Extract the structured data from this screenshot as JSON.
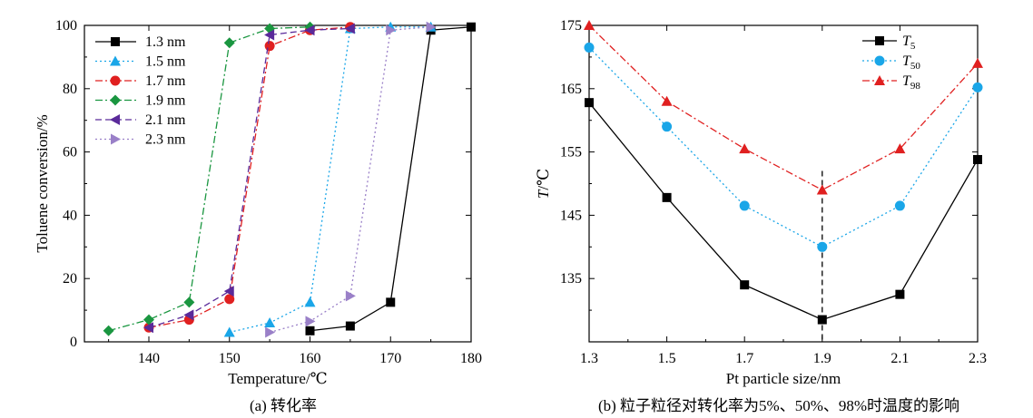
{
  "chart_data": [
    {
      "type": "line",
      "panel": "a",
      "caption": "(a) 转化率",
      "xlabel": "Temperature/℃",
      "ylabel": "Toluene conversion/%",
      "xlim": [
        132,
        180
      ],
      "ylim": [
        0,
        100
      ],
      "xticks": [
        "140",
        "150",
        "160",
        "170",
        "180"
      ],
      "yticks": [
        "0",
        "20",
        "40",
        "60",
        "80",
        "100"
      ],
      "legend_position": "top-left",
      "series": [
        {
          "name": "1.3 nm",
          "color": "#000000",
          "marker": "square",
          "dash": "solid",
          "x": [
            160,
            165,
            170,
            175,
            180
          ],
          "y": [
            3.5,
            5,
            12.5,
            98.5,
            99.5
          ]
        },
        {
          "name": "1.5 nm",
          "color": "#1aa6e8",
          "marker": "triangle-up",
          "dash": "dotted",
          "x": [
            150,
            155,
            160,
            165,
            170,
            175
          ],
          "y": [
            3,
            6,
            12.5,
            99,
            99.5,
            99.5
          ]
        },
        {
          "name": "1.7 nm",
          "color": "#e02020",
          "marker": "circle",
          "dash": "dash-dot",
          "x": [
            140,
            145,
            150,
            155,
            160,
            165
          ],
          "y": [
            4.5,
            7,
            13.5,
            93.5,
            98.5,
            99.5
          ]
        },
        {
          "name": "1.9 nm",
          "color": "#1a9640",
          "marker": "diamond",
          "dash": "dash-dot",
          "x": [
            135,
            140,
            145,
            150,
            155,
            160
          ],
          "y": [
            3.5,
            7,
            12.5,
            94.5,
            99,
            99.5
          ]
        },
        {
          "name": "2.1 nm",
          "color": "#5a2a9a",
          "marker": "triangle-left",
          "dash": "dash",
          "x": [
            140,
            145,
            150,
            155,
            160,
            165
          ],
          "y": [
            4.5,
            8.5,
            16,
            97,
            98.5,
            99
          ]
        },
        {
          "name": "2.3 nm",
          "color": "#9a80c8",
          "marker": "triangle-right",
          "dash": "dotted",
          "x": [
            155,
            160,
            165,
            170,
            175
          ],
          "y": [
            3,
            6.5,
            14.5,
            98.5,
            99.5
          ]
        }
      ]
    },
    {
      "type": "line",
      "panel": "b",
      "caption": "(b) 粒子粒径对转化率为5%、50%、98%时温度的影响",
      "xlabel": "Pt particle size/nm",
      "ylabel_italic": "T",
      "ylabel_rest": "/℃",
      "categories": [
        "1.3",
        "1.5",
        "1.7",
        "1.9",
        "2.1",
        "2.3"
      ],
      "ylim": [
        125,
        175
      ],
      "yticks": [
        "135",
        "145",
        "155",
        "165",
        "175"
      ],
      "legend_position": "top-right",
      "vline_at": "1.9",
      "series": [
        {
          "name_main": "T",
          "name_sub": "5",
          "color": "#000000",
          "marker": "square",
          "dash": "solid",
          "values": [
            162.8,
            147.8,
            134,
            128.5,
            132.5,
            153.8
          ]
        },
        {
          "name_main": "T",
          "name_sub": "50",
          "color": "#1aa6e8",
          "marker": "circle",
          "dash": "dotted",
          "values": [
            171.5,
            159,
            146.5,
            140,
            146.5,
            165.2
          ]
        },
        {
          "name_main": "T",
          "name_sub": "98",
          "color": "#e02020",
          "marker": "triangle-up",
          "dash": "dash-dot",
          "values": [
            175,
            163,
            155.5,
            149,
            155.5,
            169
          ]
        }
      ]
    }
  ]
}
